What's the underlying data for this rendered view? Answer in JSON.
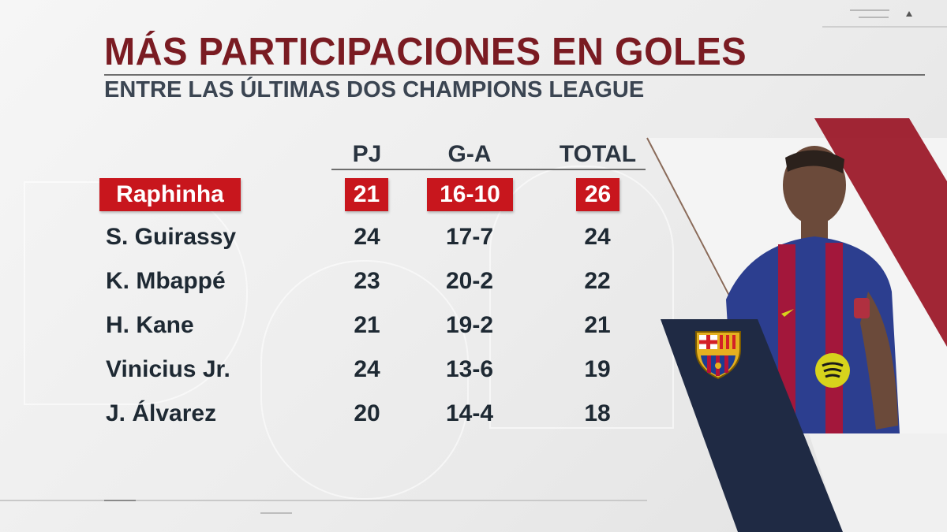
{
  "title": "MÁS PARTICIPACIONES EN GOLES",
  "subtitle": "ENTRE LAS ÚLTIMAS DOS CHAMPIONS LEAGUE",
  "columns": [
    "PJ",
    "G-A",
    "TOTAL"
  ],
  "rows": [
    {
      "player": "Raphinha",
      "pj": "21",
      "ga": "16-10",
      "total": "26",
      "highlight": true
    },
    {
      "player": "S. Guirassy",
      "pj": "24",
      "ga": "17-7",
      "total": "24",
      "highlight": false
    },
    {
      "player": "K. Mbappé",
      "pj": "23",
      "ga": "20-2",
      "total": "22",
      "highlight": false
    },
    {
      "player": "H. Kane",
      "pj": "21",
      "ga": "19-2",
      "total": "21",
      "highlight": false
    },
    {
      "player": "Vinicius Jr.",
      "pj": "24",
      "ga": "13-6",
      "total": "19",
      "highlight": false
    },
    {
      "player": "J. Álvarez",
      "pj": "20",
      "ga": "14-4",
      "total": "18",
      "highlight": false
    }
  ],
  "colors": {
    "title": "#7a1b22",
    "highlight": "#c8161d",
    "navy_panel": "#1f2a44",
    "maroon_panel": "#9c1a2a"
  },
  "icons": {
    "crest": "fc-barcelona-crest-icon",
    "player": "player-photo-placeholder"
  }
}
